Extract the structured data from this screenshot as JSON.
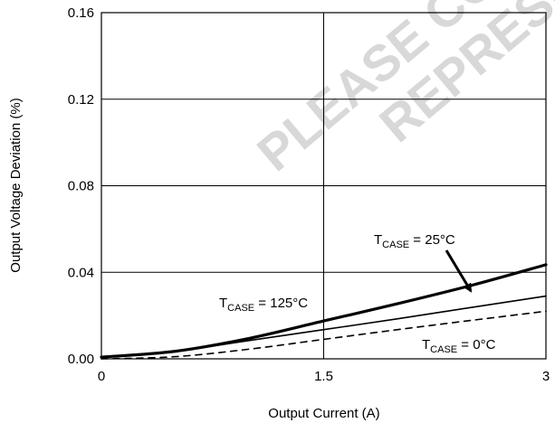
{
  "chart_data": {
    "type": "line",
    "xlabel": "Output Current (A)",
    "ylabel": "Output Voltage Deviation (%)",
    "xlim": [
      0,
      3
    ],
    "ylim": [
      0,
      0.16
    ],
    "x_ticks": [
      "0",
      "1.5",
      "3"
    ],
    "y_ticks": [
      "0.00",
      "0.04",
      "0.08",
      "0.12",
      "0.16"
    ],
    "grid": true,
    "series": [
      {
        "name": "TCASE = 25°C",
        "style": "thick-solid",
        "x": [
          0,
          0.5,
          1.0,
          1.5,
          2.0,
          2.5,
          3.0
        ],
        "y": [
          0.0008,
          0.0035,
          0.0095,
          0.0175,
          0.0255,
          0.034,
          0.0435
        ]
      },
      {
        "name": "TCASE = 125°C",
        "style": "solid",
        "x": [
          0,
          0.5,
          1.0,
          1.5,
          2.0,
          2.5,
          3.0
        ],
        "y": [
          0.0008,
          0.0035,
          0.0085,
          0.0135,
          0.0185,
          0.0238,
          0.029
        ]
      },
      {
        "name": "TCASE = 0°C",
        "style": "dashed",
        "x": [
          0,
          0.5,
          1.0,
          1.5,
          2.0,
          2.5,
          3.0
        ],
        "y": [
          0.0,
          0.001,
          0.0045,
          0.009,
          0.0135,
          0.0178,
          0.022
        ]
      }
    ],
    "annotations": [
      {
        "main": "T",
        "sub": "CASE",
        "rest": " = 25°C"
      },
      {
        "main": "T",
        "sub": "CASE",
        "rest": " = 125°C"
      },
      {
        "main": "T",
        "sub": "CASE",
        "rest": " = 0°C"
      }
    ],
    "watermark": [
      "PLEASE CO",
      "REPRESE"
    ]
  }
}
